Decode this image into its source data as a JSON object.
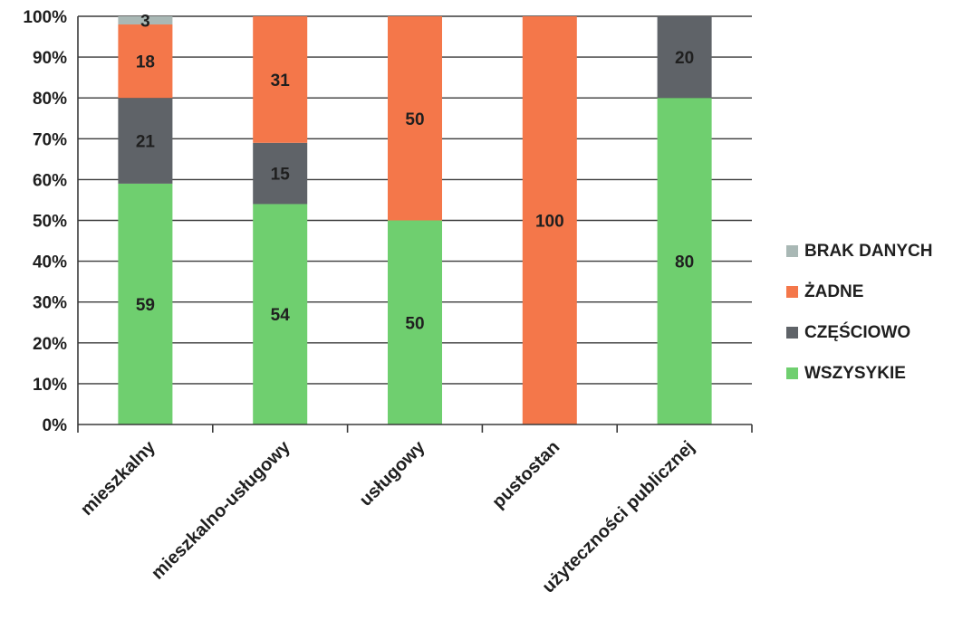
{
  "chart_data": {
    "type": "bar",
    "stacked": true,
    "percent_scale": true,
    "title": "",
    "xlabel": "",
    "ylabel": "",
    "ylim": [
      0,
      100
    ],
    "y_ticks": [
      "0%",
      "10%",
      "20%",
      "30%",
      "40%",
      "50%",
      "60%",
      "70%",
      "80%",
      "90%",
      "100%"
    ],
    "grid": true,
    "legend_position": "right",
    "categories": [
      "mieszkalny",
      "mieszkalno-usługowy",
      "usługowy",
      "pustostan",
      "użyteczności publicznej"
    ],
    "series": [
      {
        "name": "WSZYSYKIE",
        "color": "#6fcf6f",
        "values": [
          59,
          54,
          50,
          0,
          80
        ]
      },
      {
        "name": "CZĘŚCIOWO",
        "color": "#5f6368",
        "values": [
          21,
          15,
          0,
          0,
          20
        ]
      },
      {
        "name": "ŻADNE",
        "color": "#f4774a",
        "values": [
          18,
          31,
          50,
          100,
          0
        ]
      },
      {
        "name": "BRAK DANYCH",
        "color": "#a9b8b5",
        "values": [
          3,
          0,
          0,
          0,
          0
        ]
      }
    ],
    "legend_order": [
      "BRAK DANYCH",
      "ŻADNE",
      "CZĘŚCIOWO",
      "WSZYSYKIE"
    ]
  }
}
